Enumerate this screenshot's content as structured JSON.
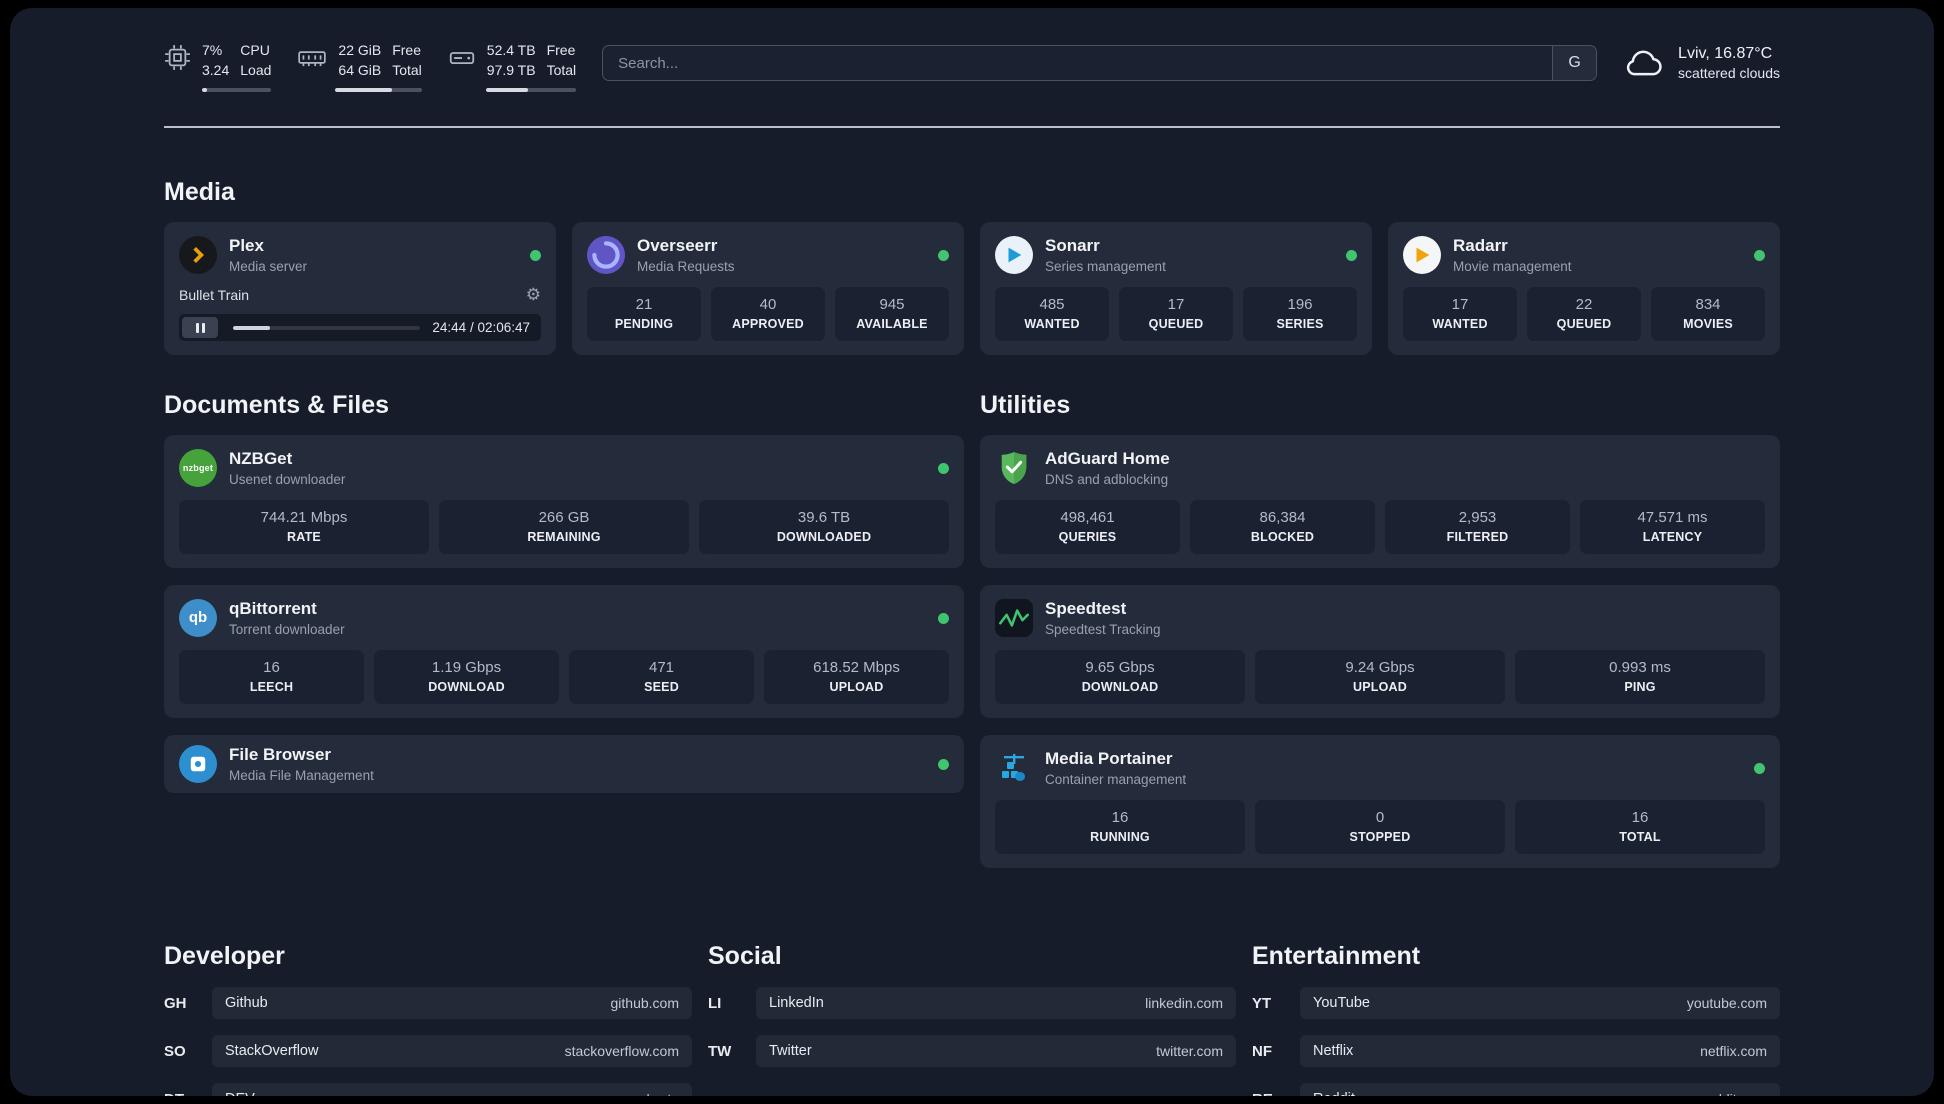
{
  "colors": {
    "status_online": "#40c46e",
    "plex_accent": "#e5a00d",
    "adguard_green": "#59b85c",
    "speedtest_green": "#3fc46f",
    "portainer_blue": "#28a8e0"
  },
  "topbar": {
    "cpu": {
      "icon": "cpu-chip-icon",
      "value": "7%",
      "sub": "3.24",
      "label_top": "CPU",
      "label_bottom": "Load",
      "progress": 7
    },
    "memory": {
      "icon": "memory-icon",
      "value": "22 GiB",
      "sub": "64 GiB",
      "label_top": "Free",
      "label_bottom": "Total",
      "progress": 66
    },
    "disk": {
      "icon": "disk-icon",
      "value": "52.4 TB",
      "sub": "97.9 TB",
      "label_top": "Free",
      "label_bottom": "Total",
      "progress": 47
    },
    "search": {
      "placeholder": "Search...",
      "engine_button": "G"
    },
    "weather": {
      "icon": "cloud-icon",
      "location": "Lviv, 16.87°C",
      "condition": "scattered clouds"
    }
  },
  "sections": {
    "media": {
      "title": "Media",
      "plex": {
        "name": "Plex",
        "subtitle": "Media server",
        "icon": "plex-icon",
        "online": true,
        "now_playing": {
          "title": "Bullet Train",
          "time": "24:44 / 02:06:47",
          "progress": 20
        }
      },
      "overseerr": {
        "name": "Overseerr",
        "subtitle": "Media Requests",
        "icon": "overseerr-icon",
        "online": true,
        "stats": [
          {
            "value": "21",
            "label": "PENDING"
          },
          {
            "value": "40",
            "label": "APPROVED"
          },
          {
            "value": "945",
            "label": "AVAILABLE"
          }
        ]
      },
      "sonarr": {
        "name": "Sonarr",
        "subtitle": "Series management",
        "icon": "sonarr-icon",
        "online": true,
        "stats": [
          {
            "value": "485",
            "label": "WANTED"
          },
          {
            "value": "17",
            "label": "QUEUED"
          },
          {
            "value": "196",
            "label": "SERIES"
          }
        ]
      },
      "radarr": {
        "name": "Radarr",
        "subtitle": "Movie management",
        "icon": "radarr-icon",
        "online": true,
        "stats": [
          {
            "value": "17",
            "label": "WANTED"
          },
          {
            "value": "22",
            "label": "QUEUED"
          },
          {
            "value": "834",
            "label": "MOVIES"
          }
        ]
      }
    },
    "documents": {
      "title": "Documents & Files",
      "nzbget": {
        "name": "NZBGet",
        "subtitle": "Usenet downloader",
        "icon": "nzbget-icon",
        "icon_text": "nzbget",
        "online": true,
        "stats": [
          {
            "value": "744.21 Mbps",
            "label": "RATE"
          },
          {
            "value": "266 GB",
            "label": "REMAINING"
          },
          {
            "value": "39.6 TB",
            "label": "DOWNLOADED"
          }
        ]
      },
      "qbittorrent": {
        "name": "qBittorrent",
        "subtitle": "Torrent downloader",
        "icon": "qbittorrent-icon",
        "icon_text": "qb",
        "online": true,
        "stats": [
          {
            "value": "16",
            "label": "LEECH"
          },
          {
            "value": "1.19 Gbps",
            "label": "DOWNLOAD"
          },
          {
            "value": "471",
            "label": "SEED"
          },
          {
            "value": "618.52 Mbps",
            "label": "UPLOAD"
          }
        ]
      },
      "filebrowser": {
        "name": "File Browser",
        "subtitle": "Media File Management",
        "icon": "filebrowser-icon",
        "online": true
      }
    },
    "utilities": {
      "title": "Utilities",
      "adguard": {
        "name": "AdGuard Home",
        "subtitle": "DNS and adblocking",
        "icon": "adguard-shield-icon",
        "stats": [
          {
            "value": "498,461",
            "label": "QUERIES"
          },
          {
            "value": "86,384",
            "label": "BLOCKED"
          },
          {
            "value": "2,953",
            "label": "FILTERED"
          },
          {
            "value": "47.571 ms",
            "label": "LATENCY"
          }
        ]
      },
      "speedtest": {
        "name": "Speedtest",
        "subtitle": "Speedtest Tracking",
        "icon": "speedtest-icon",
        "stats": [
          {
            "value": "9.65 Gbps",
            "label": "DOWNLOAD"
          },
          {
            "value": "9.24 Gbps",
            "label": "UPLOAD"
          },
          {
            "value": "0.993 ms",
            "label": "PING"
          }
        ]
      },
      "portainer": {
        "name": "Media Portainer",
        "subtitle": "Container management",
        "icon": "portainer-icon",
        "online": true,
        "stats": [
          {
            "value": "16",
            "label": "RUNNING"
          },
          {
            "value": "0",
            "label": "STOPPED"
          },
          {
            "value": "16",
            "label": "TOTAL"
          }
        ]
      }
    },
    "bookmarks": [
      {
        "title": "Developer",
        "links": [
          {
            "abbr": "GH",
            "name": "Github",
            "url": "github.com"
          },
          {
            "abbr": "SO",
            "name": "StackOverflow",
            "url": "stackoverflow.com"
          },
          {
            "abbr": "DT",
            "name": "DEV",
            "url": "dev.to"
          }
        ]
      },
      {
        "title": "Social",
        "links": [
          {
            "abbr": "LI",
            "name": "LinkedIn",
            "url": "linkedin.com"
          },
          {
            "abbr": "TW",
            "name": "Twitter",
            "url": "twitter.com"
          }
        ]
      },
      {
        "title": "Entertainment",
        "links": [
          {
            "abbr": "YT",
            "name": "YouTube",
            "url": "youtube.com"
          },
          {
            "abbr": "NF",
            "name": "Netflix",
            "url": "netflix.com"
          },
          {
            "abbr": "RE",
            "name": "Reddit",
            "url": "reddit.com"
          }
        ]
      }
    ]
  }
}
